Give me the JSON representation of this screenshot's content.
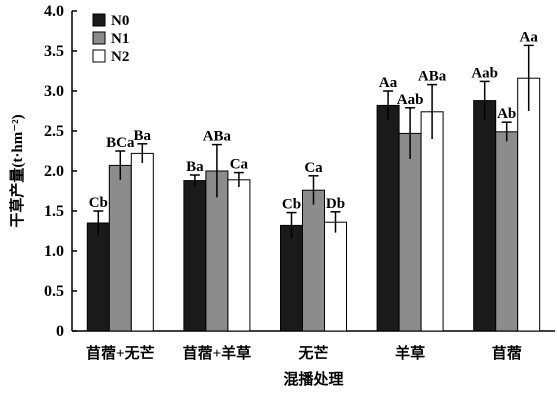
{
  "chart_data": {
    "type": "bar",
    "xlabel": "混播处理",
    "ylabel": "干草产量(t·hm⁻²)",
    "ylim": [
      0,
      4.0
    ],
    "yticks": [
      0,
      0.5,
      1.0,
      1.5,
      2.0,
      2.5,
      3.0,
      3.5,
      4.0
    ],
    "ytick_labels": [
      "0",
      "0.5",
      "1.0",
      "1.5",
      "2.0",
      "2.5",
      "3.0",
      "3.5",
      "4.0"
    ],
    "grid": false,
    "legend": "top-left",
    "categories": [
      "苜蓿+无芒",
      "苜蓿+羊草",
      "无芒",
      "羊草",
      "苜蓿"
    ],
    "series": [
      {
        "name": "N0",
        "color": "#1a1a1a",
        "values": [
          1.35,
          1.88,
          1.32,
          2.82,
          2.88
        ],
        "errors": [
          0.15,
          0.07,
          0.16,
          0.18,
          0.24
        ],
        "labels": [
          "Cb",
          "Ba",
          "Cb",
          "Aa",
          "Aab"
        ]
      },
      {
        "name": "N1",
        "color": "#8c8c8c",
        "values": [
          2.07,
          2.0,
          1.76,
          2.47,
          2.49
        ],
        "errors": [
          0.18,
          0.33,
          0.18,
          0.32,
          0.12
        ],
        "labels": [
          "BCa",
          "ABa",
          "Ca",
          "Aab",
          "Ab"
        ]
      },
      {
        "name": "N2",
        "color": "#ffffff",
        "values": [
          2.22,
          1.89,
          1.36,
          2.74,
          3.16
        ],
        "errors": [
          0.12,
          0.09,
          0.13,
          0.34,
          0.41
        ],
        "labels": [
          "Ba",
          "Ca",
          "Db",
          "ABa",
          "Aa"
        ]
      }
    ]
  }
}
